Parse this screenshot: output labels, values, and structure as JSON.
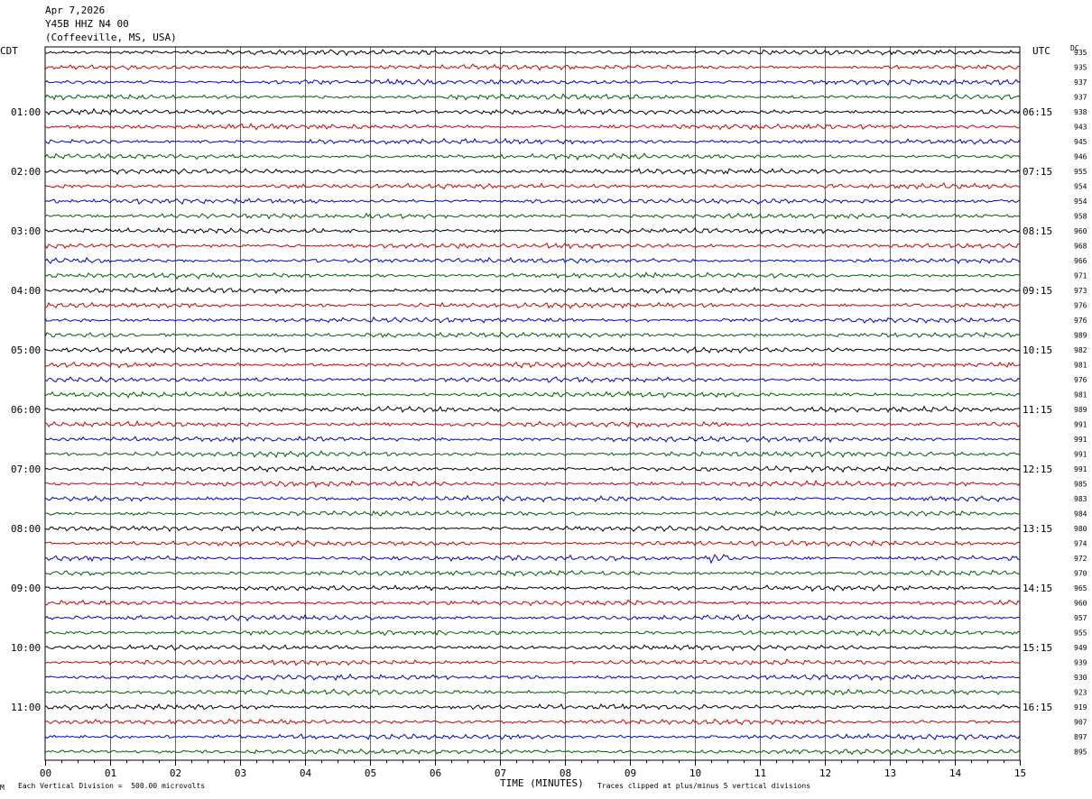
{
  "header": {
    "date": "Apr 7,2026",
    "station": "Y45B HHZ N4 00",
    "location": "(Coffeeville, MS, USA)"
  },
  "left_zone": "CDT",
  "right_zone": "UTC",
  "dc_label": "DC",
  "footer": {
    "scale": "Each Vertical Division =  500.00 microvolts",
    "axis_title": "TIME (MINUTES)",
    "clip_note": "Traces clipped at plus/minus 5 vertical divisions",
    "corner_mark": "M"
  },
  "chart_data": {
    "type": "line",
    "x_range": [
      0,
      15
    ],
    "x_ticks": [
      "00",
      "01",
      "02",
      "03",
      "04",
      "05",
      "06",
      "07",
      "08",
      "09",
      "10",
      "11",
      "12",
      "13",
      "14",
      "15"
    ],
    "xlabel": "TIME (MINUTES)",
    "trace_minutes": 15,
    "trace_colors": [
      "#000000",
      "#d00000",
      "#0000d0",
      "#006000"
    ],
    "grid": true,
    "left_hour_labels": [
      "01:00",
      "02:00",
      "03:00",
      "04:00",
      "05:00",
      "06:00",
      "07:00",
      "08:00",
      "09:00",
      "10:00",
      "11:00"
    ],
    "right_hour_labels": [
      "06:15",
      "07:15",
      "08:15",
      "09:15",
      "10:15",
      "11:15",
      "12:15",
      "13:15",
      "14:15",
      "15:15",
      "16:15"
    ],
    "dc_offsets": [
      935,
      935,
      937,
      937,
      938,
      943,
      945,
      946,
      955,
      954,
      954,
      958,
      960,
      968,
      966,
      971,
      973,
      976,
      976,
      989,
      982,
      981,
      976,
      981,
      989,
      991,
      991,
      991,
      991,
      985,
      983,
      984,
      980,
      974,
      972,
      970,
      965,
      960,
      957,
      955,
      949,
      939,
      930,
      923,
      919,
      907,
      897,
      895
    ],
    "events": [
      {
        "trace": 34,
        "minute": 10.35,
        "amplitude": "large"
      }
    ]
  }
}
